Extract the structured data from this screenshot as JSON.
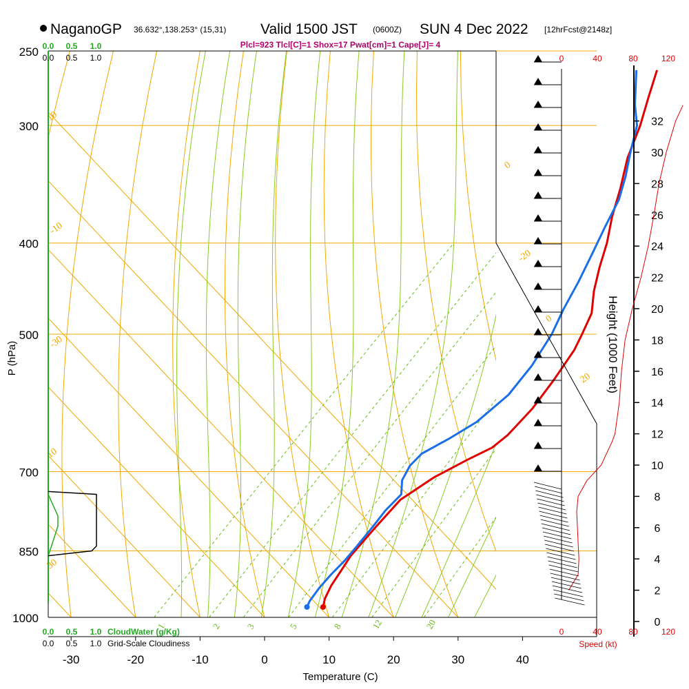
{
  "header": {
    "station": "NaganoGP",
    "coords": "36.632°,138.253° (15,31)",
    "valid": "Valid 1500 JST",
    "valid_utc": "(0600Z)",
    "date": "SUN 4 Dec 2022",
    "forecast": "[12hrFcst@2148z]",
    "indices": "Plcl=923 Tlcl[C]=1 Shox=17 Pwat[cm]=1 Cape[J]= 4"
  },
  "colors": {
    "isobar": "#f0a800",
    "dry_adiabat": "#f0a800",
    "moist_adiabat": "#88cc22",
    "mixing_ratio": "#66bb11",
    "temperature": "#e00000",
    "dewpoint": "#1a6ee8",
    "cloud_water": "#22aa22",
    "header_indices": "#b0006a",
    "speed_axis": "#e00000"
  },
  "chart_data": {
    "type": "line",
    "title": "NaganoGP Valid 1500 JST SUN 4 Dec 2022",
    "xlabel": "Temperature (C)",
    "ylabel": "P (hPa)",
    "y2label": "Height (1000 Feet)",
    "x_ticks": [
      "-30",
      "-20",
      "-10",
      "0",
      "10",
      "20",
      "30",
      "40"
    ],
    "p_ticks": [
      "250",
      "300",
      "400",
      "500",
      "700",
      "850",
      "1000"
    ],
    "height_ticks": [
      "0",
      "2",
      "4",
      "6",
      "8",
      "10",
      "12",
      "14",
      "16",
      "18",
      "20",
      "22",
      "24",
      "26",
      "28",
      "30",
      "32"
    ],
    "dry_adiabat_labels": [
      "10",
      "0",
      "-10",
      "-20",
      "-30",
      "0",
      "10",
      "20",
      "30"
    ],
    "mixing_ratio_labels": [
      "1",
      "2",
      "3",
      "5",
      "8",
      "12",
      "20"
    ],
    "cloud_top_labels": [
      "0.0",
      "0.5",
      "1.0"
    ],
    "cloud_bottom_labels": [
      "0.0",
      "0.5",
      "1.0"
    ],
    "cloud_water_label": "CloudWater (g/Kg)",
    "cloudiness_label": "Grid-Scale Cloudiness",
    "speed_labels": [
      "0",
      "40",
      "80",
      "120"
    ],
    "speed_label": "Speed (kt)",
    "series": [
      {
        "name": "Temperature",
        "points": [
          [
            7.5,
            975
          ],
          [
            6.5,
            955
          ],
          [
            5.5,
            925
          ],
          [
            4.5,
            880
          ],
          [
            4.0,
            860
          ],
          [
            3.5,
            800
          ],
          [
            3.2,
            750
          ],
          [
            5.0,
            710
          ],
          [
            7.5,
            680
          ],
          [
            9.5,
            660
          ],
          [
            10.0,
            640
          ],
          [
            9.8,
            600
          ],
          [
            8.8,
            560
          ],
          [
            7.4,
            520
          ],
          [
            6.2,
            500
          ],
          [
            4.5,
            475
          ],
          [
            1.5,
            450
          ],
          [
            -1.2,
            425
          ],
          [
            -3.8,
            400
          ],
          [
            -7.0,
            375
          ],
          [
            -10.0,
            350
          ],
          [
            -13.5,
            325
          ],
          [
            -16.5,
            300
          ],
          [
            -19.5,
            280
          ],
          [
            -22.3,
            262
          ]
        ]
      },
      {
        "name": "Dewpoint",
        "points": [
          [
            5.0,
            975
          ],
          [
            4.5,
            960
          ],
          [
            4.0,
            930
          ],
          [
            3.8,
            900
          ],
          [
            3.8,
            870
          ],
          [
            3.5,
            840
          ],
          [
            3.0,
            800
          ],
          [
            2.5,
            770
          ],
          [
            2.5,
            740
          ],
          [
            0.5,
            715
          ],
          [
            -0.5,
            690
          ],
          [
            -0.5,
            670
          ],
          [
            1.5,
            645
          ],
          [
            3.2,
            620
          ],
          [
            4.0,
            580
          ],
          [
            3.2,
            540
          ],
          [
            1.5,
            500
          ],
          [
            -0.5,
            470
          ],
          [
            -2.3,
            440
          ],
          [
            -4.5,
            410
          ],
          [
            -6.5,
            385
          ],
          [
            -8.5,
            360
          ],
          [
            -11.0,
            340
          ],
          [
            -14.0,
            320
          ],
          [
            -17.0,
            300
          ],
          [
            -20.5,
            285
          ],
          [
            -25.5,
            262
          ]
        ]
      }
    ],
    "wind_speed": [
      [
        2,
        1.0
      ],
      [
        3,
        2.3
      ],
      [
        4,
        2.4
      ],
      [
        5,
        2.3
      ],
      [
        6,
        2.2
      ],
      [
        7,
        2.1
      ],
      [
        8,
        2.3
      ],
      [
        9,
        3.5
      ],
      [
        10,
        5.5
      ],
      [
        11,
        6.5
      ],
      [
        11.5,
        7.0
      ],
      [
        12,
        7.4
      ],
      [
        13,
        7.7
      ],
      [
        14,
        8.0
      ],
      [
        16,
        8.3
      ],
      [
        18,
        8.8
      ],
      [
        20,
        9.8
      ],
      [
        22,
        11.0
      ],
      [
        24,
        12.0
      ],
      [
        26,
        12.8
      ],
      [
        28,
        13.5
      ],
      [
        30,
        14.5
      ],
      [
        32,
        15.8
      ],
      [
        33,
        16.8
      ]
    ],
    "cloud_water": [
      [
        740,
        0.0
      ],
      [
        780,
        0.2
      ],
      [
        800,
        0.2
      ],
      [
        830,
        0.1
      ],
      [
        860,
        0.0
      ]
    ],
    "cloudiness": [
      [
        735,
        0.0
      ],
      [
        740,
        1.0
      ],
      [
        840,
        1.0
      ],
      [
        850,
        0.9
      ],
      [
        860,
        0.0
      ]
    ]
  }
}
